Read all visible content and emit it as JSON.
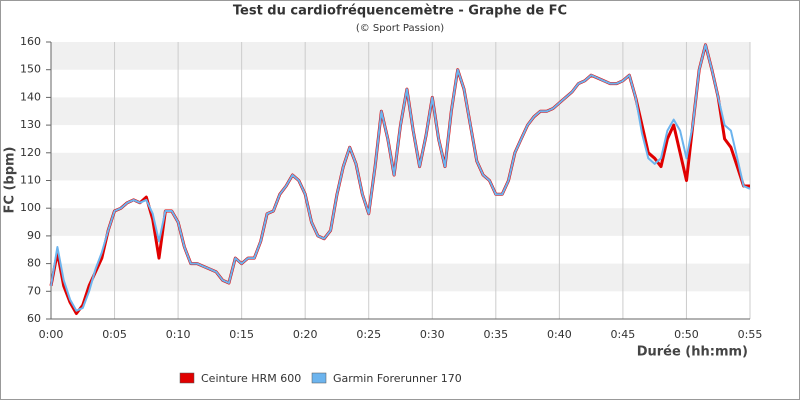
{
  "chart_data": {
    "type": "line",
    "title": "Test du cardiofréquencemètre - Graphe de FC",
    "subtitle": "(© Sport Passion)",
    "x_label": "Durée (hh:mm)",
    "y_label": "FC (bpm)",
    "x": [
      0,
      0.5,
      1,
      1.5,
      2,
      2.5,
      3,
      3.5,
      4,
      4.5,
      5,
      5.5,
      6,
      6.5,
      7,
      7.5,
      8,
      8.5,
      9,
      9.5,
      10,
      10.5,
      11,
      11.5,
      12,
      12.5,
      13,
      13.5,
      14,
      14.5,
      15,
      15.5,
      16,
      16.5,
      17,
      17.5,
      18,
      18.5,
      19,
      19.5,
      20,
      20.5,
      21,
      21.5,
      22,
      22.5,
      23,
      23.5,
      24,
      24.5,
      25,
      25.5,
      26,
      26.5,
      27,
      27.5,
      28,
      28.5,
      29,
      29.5,
      30,
      30.5,
      31,
      31.5,
      32,
      32.5,
      33,
      33.5,
      34,
      34.5,
      35,
      35.5,
      36,
      36.5,
      37,
      37.5,
      38,
      38.5,
      39,
      39.5,
      40,
      40.5,
      41,
      41.5,
      42,
      42.5,
      43,
      43.5,
      44,
      44.5,
      45,
      45.5,
      46,
      46.5,
      47,
      47.5,
      48,
      48.5,
      49,
      49.5,
      50,
      50.5,
      51,
      51.5,
      52,
      52.5,
      53,
      53.5,
      54,
      54.5,
      55
    ],
    "series": [
      {
        "name": "Ceinture HRM 600",
        "color": "#e00000",
        "values": [
          72,
          84,
          72,
          66,
          62,
          65,
          72,
          77,
          82,
          92,
          99,
          100,
          102,
          103,
          102,
          104,
          96,
          82,
          99,
          99,
          95,
          86,
          80,
          80,
          79,
          78,
          77,
          74,
          73,
          82,
          80,
          82,
          82,
          88,
          98,
          99,
          105,
          108,
          112,
          110,
          105,
          95,
          90,
          89,
          92,
          105,
          115,
          122,
          116,
          105,
          98,
          115,
          135,
          125,
          112,
          130,
          143,
          128,
          115,
          126,
          140,
          125,
          115,
          135,
          150,
          143,
          130,
          117,
          112,
          110,
          105,
          105,
          110,
          120,
          125,
          130,
          133,
          135,
          135,
          136,
          138,
          140,
          142,
          145,
          146,
          148,
          147,
          146,
          145,
          145,
          146,
          148,
          140,
          130,
          120,
          118,
          115,
          125,
          130,
          120,
          110,
          130,
          150,
          159,
          150,
          140,
          125,
          122,
          115,
          108,
          108
        ]
      },
      {
        "name": "Garmin Forerunner 170",
        "color": "#6cb4ee",
        "values": [
          72,
          86,
          74,
          67,
          63,
          64,
          70,
          78,
          84,
          92,
          99,
          100,
          102,
          103,
          102,
          103,
          98,
          88,
          99,
          99,
          95,
          86,
          80,
          80,
          79,
          78,
          77,
          74,
          73,
          82,
          80,
          82,
          82,
          88,
          98,
          99,
          105,
          108,
          112,
          110,
          105,
          95,
          90,
          89,
          92,
          105,
          115,
          122,
          116,
          105,
          98,
          115,
          135,
          125,
          112,
          130,
          143,
          128,
          115,
          126,
          140,
          125,
          115,
          135,
          150,
          143,
          130,
          117,
          112,
          110,
          105,
          105,
          110,
          120,
          125,
          130,
          133,
          135,
          135,
          136,
          138,
          140,
          142,
          145,
          146,
          148,
          147,
          146,
          145,
          145,
          146,
          148,
          140,
          127,
          118,
          116,
          118,
          128,
          132,
          128,
          118,
          130,
          150,
          159,
          150,
          140,
          130,
          128,
          118,
          108,
          107
        ]
      }
    ],
    "xlim": [
      0,
      55
    ],
    "xticks": [
      {
        "value": 0,
        "label": "0:00"
      },
      {
        "value": 5,
        "label": "0:05"
      },
      {
        "value": 10,
        "label": "0:10"
      },
      {
        "value": 15,
        "label": "0:15"
      },
      {
        "value": 20,
        "label": "0:20"
      },
      {
        "value": 25,
        "label": "0:25"
      },
      {
        "value": 30,
        "label": "0:30"
      },
      {
        "value": 35,
        "label": "0:35"
      },
      {
        "value": 40,
        "label": "0:40"
      },
      {
        "value": 45,
        "label": "0:45"
      },
      {
        "value": 50,
        "label": "0:50"
      },
      {
        "value": 55,
        "label": "0:55"
      }
    ],
    "ylim": [
      60,
      160
    ],
    "yticks": [
      60,
      70,
      80,
      90,
      100,
      110,
      120,
      130,
      140,
      150,
      160
    ],
    "grid": true,
    "legend": "bottom"
  }
}
